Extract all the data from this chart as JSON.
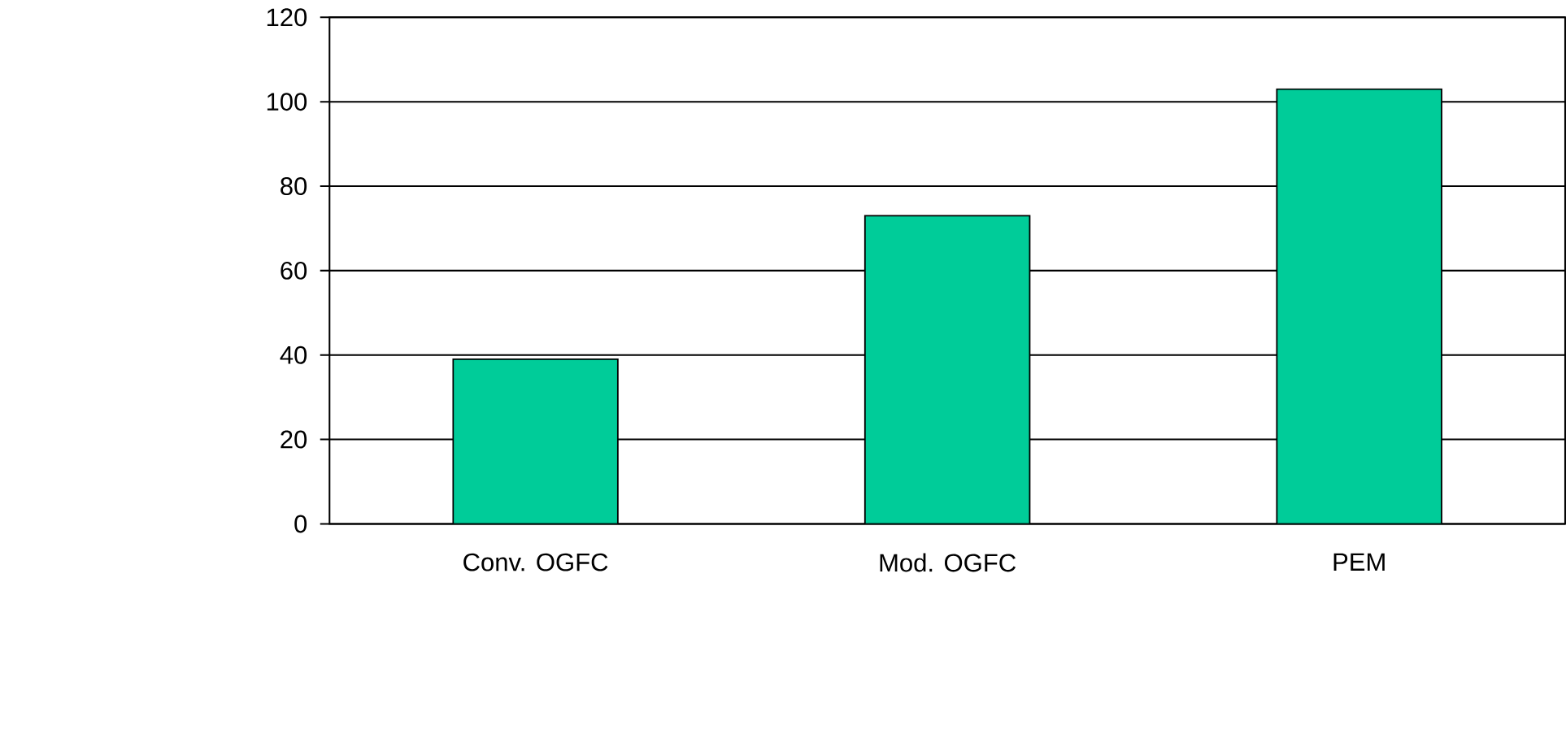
{
  "chart_data": {
    "type": "bar",
    "categories": [
      "Conv. OGFC",
      "Mod. OGFC",
      "PEM"
    ],
    "values": [
      39,
      73,
      103
    ],
    "color": "#00cc99",
    "ylim": [
      0,
      120
    ],
    "yticks": [
      0,
      20,
      40,
      60,
      80,
      100,
      120
    ],
    "grid": "y"
  }
}
